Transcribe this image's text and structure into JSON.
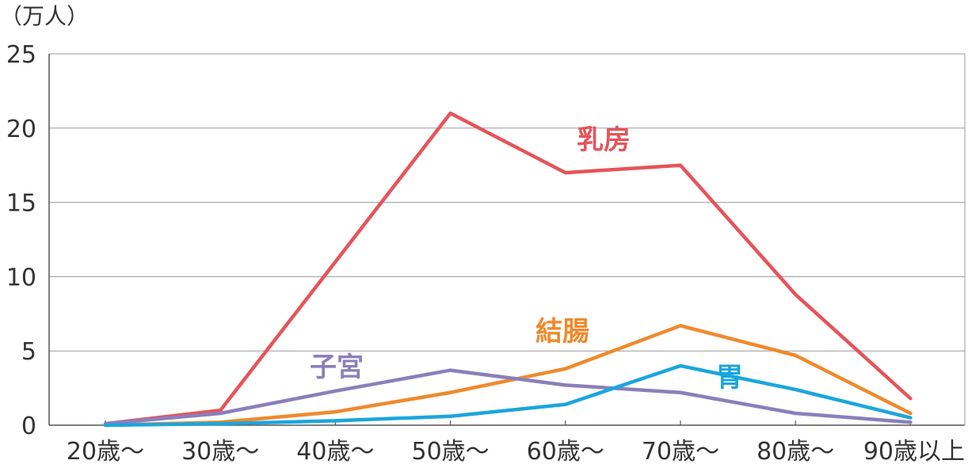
{
  "chart_data": {
    "type": "line",
    "unit_label": "（万人）",
    "categories": [
      "20歳～",
      "30歳～",
      "40歳～",
      "50歳～",
      "60歳～",
      "70歳～",
      "80歳～",
      "90歳以上"
    ],
    "y_ticks": [
      "0",
      "5",
      "10",
      "15",
      "20",
      "25"
    ],
    "ylim": [
      0,
      25
    ],
    "grid": true,
    "series": [
      {
        "name": "乳房",
        "color": "#e5545a",
        "values": [
          0.1,
          1.0,
          11.0,
          21.0,
          17.0,
          17.5,
          8.8,
          1.8
        ]
      },
      {
        "name": "結腸",
        "color": "#ef8a2c",
        "values": [
          0.0,
          0.2,
          0.9,
          2.2,
          3.8,
          6.7,
          4.7,
          0.8
        ]
      },
      {
        "name": "子宮",
        "color": "#8b7fbb",
        "values": [
          0.1,
          0.8,
          2.3,
          3.7,
          2.7,
          2.2,
          0.8,
          0.2
        ]
      },
      {
        "name": "胃",
        "color": "#1aa6dd",
        "values": [
          0.0,
          0.1,
          0.3,
          0.6,
          1.4,
          4.0,
          2.4,
          0.5
        ]
      }
    ]
  }
}
